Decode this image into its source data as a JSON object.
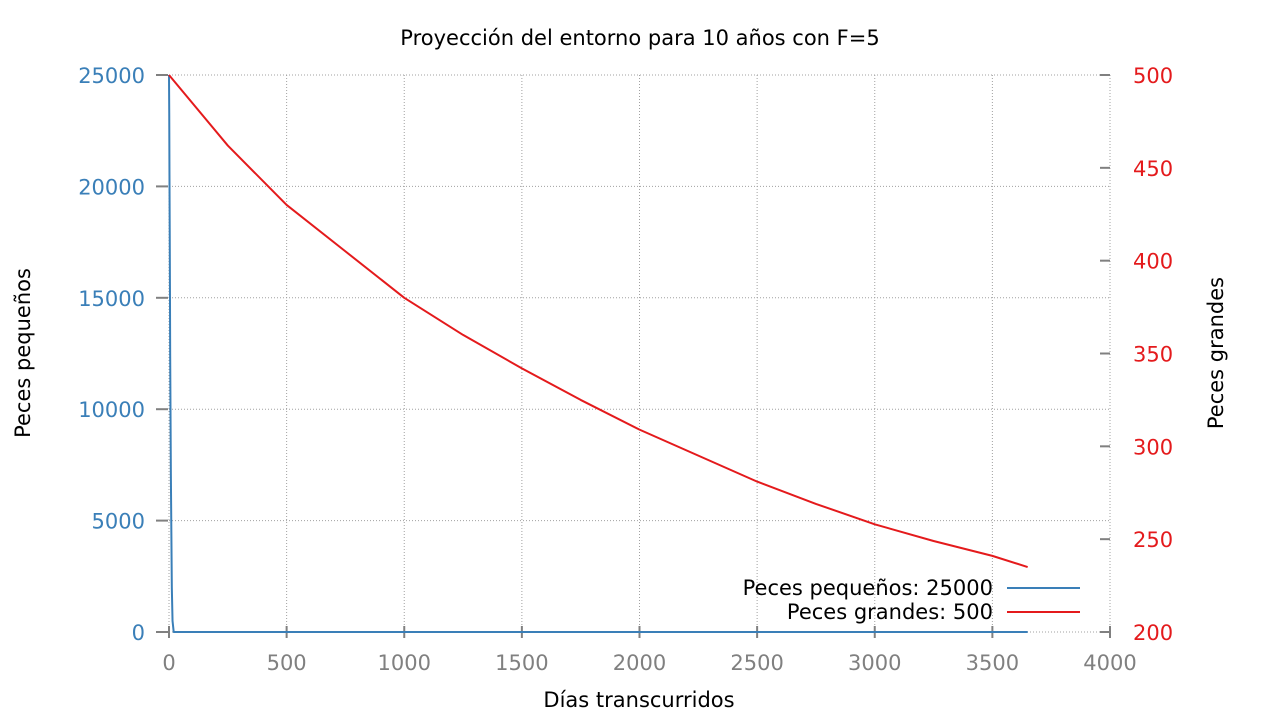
{
  "chart_data": {
    "type": "line",
    "title": "Proyección del entorno para 10 años con F=5",
    "xlabel": "Días transcurridos",
    "ylabel": "Peces pequeños",
    "y2label": "Peces grandes",
    "xlim": [
      0,
      4000
    ],
    "ylim": [
      0,
      25000
    ],
    "y2lim": [
      200,
      500
    ],
    "xticks": [
      0,
      500,
      1000,
      1500,
      2000,
      2500,
      3000,
      3500,
      4000
    ],
    "yticks": [
      0,
      5000,
      10000,
      15000,
      20000,
      25000
    ],
    "y2ticks": [
      200,
      250,
      300,
      350,
      400,
      450,
      500
    ],
    "grid": true,
    "legend_position": "bottom-right",
    "series": [
      {
        "name": "Peces pequeños: 25000",
        "axis": "left",
        "color": "#3a7fb8",
        "x": [
          0,
          1,
          2,
          3,
          4,
          5,
          8,
          10,
          12,
          15,
          20,
          100,
          500,
          1000,
          2000,
          3000,
          3650
        ],
        "y": [
          25000,
          23300,
          20500,
          18100,
          15500,
          12400,
          7000,
          4500,
          2000,
          500,
          0,
          0,
          0,
          0,
          0,
          0,
          0
        ]
      },
      {
        "name": "Peces grandes: 500",
        "axis": "right",
        "color": "#e41a1c",
        "x": [
          0,
          250,
          500,
          750,
          1000,
          1250,
          1500,
          1750,
          2000,
          2250,
          2500,
          2750,
          3000,
          3250,
          3500,
          3650
        ],
        "y": [
          500,
          462,
          430,
          405,
          380,
          360,
          342,
          325,
          309,
          295,
          281,
          269,
          258,
          249,
          241,
          235
        ]
      }
    ]
  }
}
